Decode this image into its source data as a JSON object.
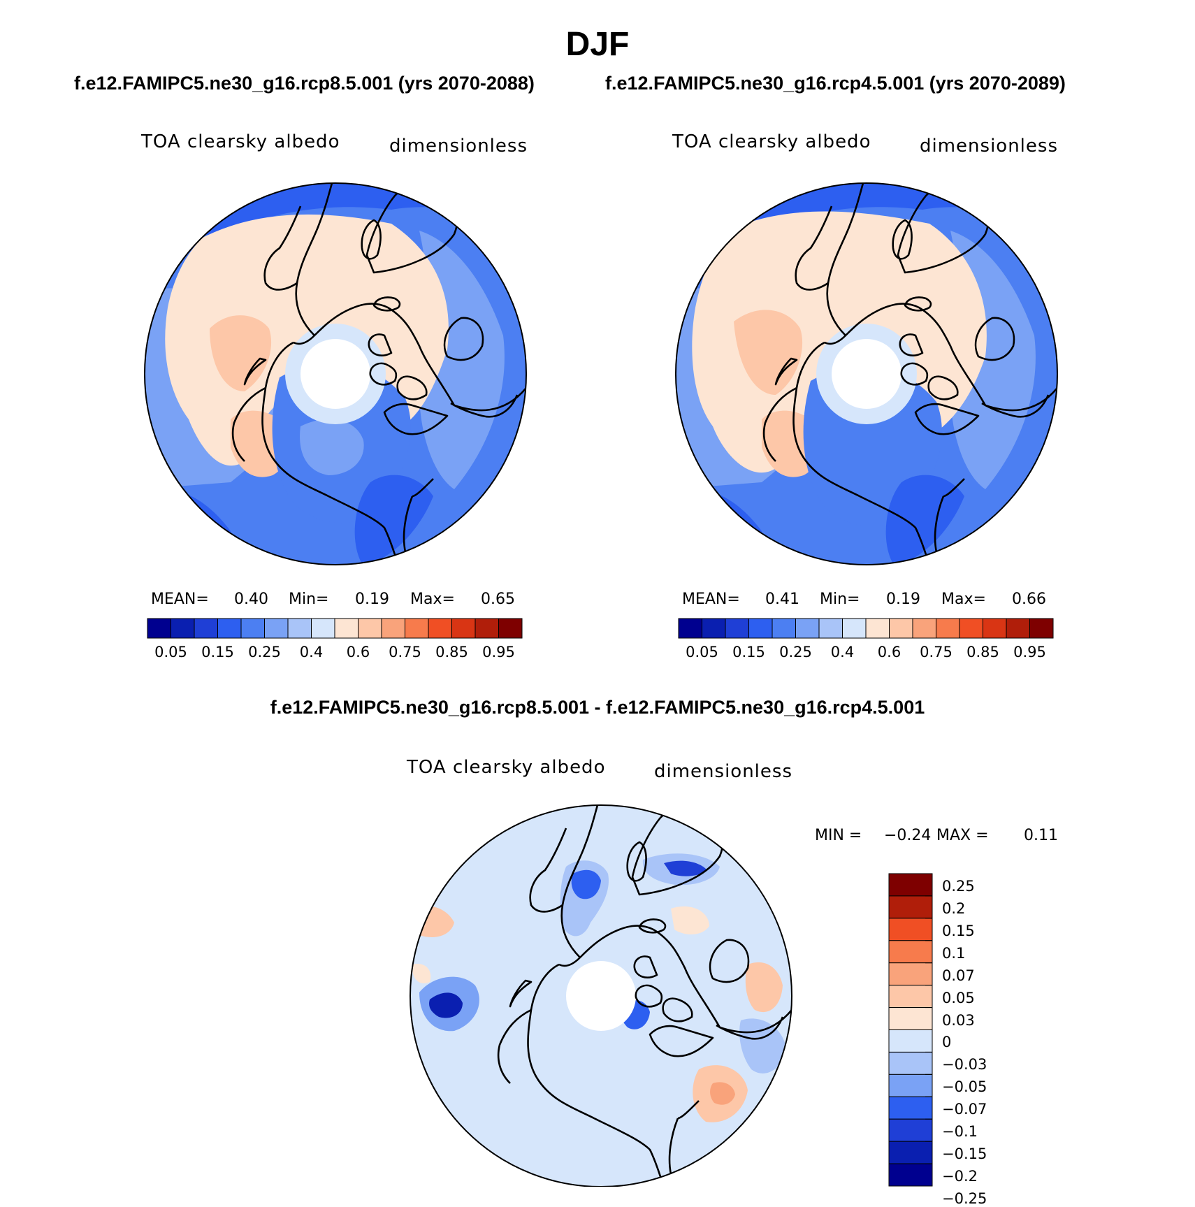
{
  "figure": {
    "season": "DJF",
    "case_a_title": "f.e12.FAMIPC5.ne30_g16.rcp8.5.001 (yrs 2070-2088)",
    "case_b_title": "f.e12.FAMIPC5.ne30_g16.rcp4.5.001 (yrs 2070-2089)",
    "diff_title": "f.e12.FAMIPC5.ne30_g16.rcp8.5.001 - f.e12.FAMIPC5.ne30_g16.rcp4.5.001"
  },
  "panels": [
    {
      "variable": "TOA clearsky albedo",
      "units": "dimensionless",
      "stats": {
        "mean_label": "MEAN=",
        "mean": "0.40",
        "min_label": "Min=",
        "min": "0.19",
        "max_label": "Max=",
        "max": "0.65"
      }
    },
    {
      "variable": "TOA clearsky albedo",
      "units": "dimensionless",
      "stats": {
        "mean_label": "MEAN=",
        "mean": "0.41",
        "min_label": "Min=",
        "min": "0.19",
        "max_label": "Max=",
        "max": "0.66"
      }
    },
    {
      "variable": "TOA clearsky albedo",
      "units": "dimensionless",
      "stats": {
        "min_label": "MIN =",
        "min": "−0.24",
        "max_label": "MAX =",
        "max": "0.11"
      }
    }
  ],
  "colorbar_abs": {
    "colors": [
      "#00008f",
      "#0a1fb0",
      "#1f3fd6",
      "#2d5ff0",
      "#4c7ff2",
      "#7aa2f5",
      "#a9c4f8",
      "#d6e6fb",
      "#fde5d3",
      "#fdc7a8",
      "#f9a37b",
      "#f77b4c",
      "#f04f24",
      "#d93514",
      "#b01e0a",
      "#7e0000"
    ],
    "labels": [
      "0.05",
      "0.15",
      "0.25",
      "0.4",
      "0.6",
      "0.75",
      "0.85",
      "0.95"
    ]
  },
  "colorbar_diff": {
    "colors": [
      "#7e0000",
      "#b01e0a",
      "#f04f24",
      "#f77b4c",
      "#f9a37b",
      "#fdc7a8",
      "#fde5d3",
      "#d6e6fb",
      "#a9c4f8",
      "#7aa2f5",
      "#2d5ff0",
      "#1f3fd6",
      "#0a1fb0",
      "#00008f"
    ],
    "labels": [
      "0.25",
      "0.2",
      "0.15",
      "0.1",
      "0.07",
      "0.05",
      "0.03",
      "0",
      "−0.03",
      "−0.05",
      "−0.07",
      "−0.1",
      "−0.15",
      "−0.2",
      "−0.25"
    ]
  }
}
